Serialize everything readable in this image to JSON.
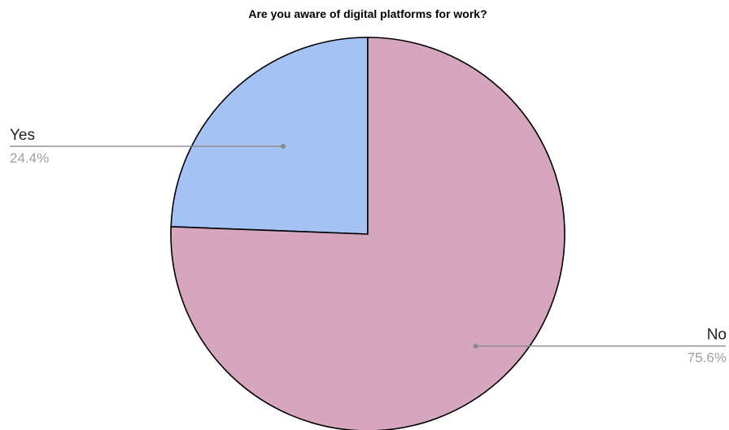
{
  "chart_data": {
    "type": "pie",
    "title": "Are you aware of digital platforms for work?",
    "slices": [
      {
        "label": "Yes",
        "value": 24.4,
        "display": "24.4%",
        "color": "#a4c2f4"
      },
      {
        "label": "No",
        "value": 75.6,
        "display": "75.6%",
        "color": "#d5a6bd"
      }
    ],
    "start_angle": "12 o'clock, clockwise",
    "legend": "none",
    "labels": "outside with leader lines"
  }
}
